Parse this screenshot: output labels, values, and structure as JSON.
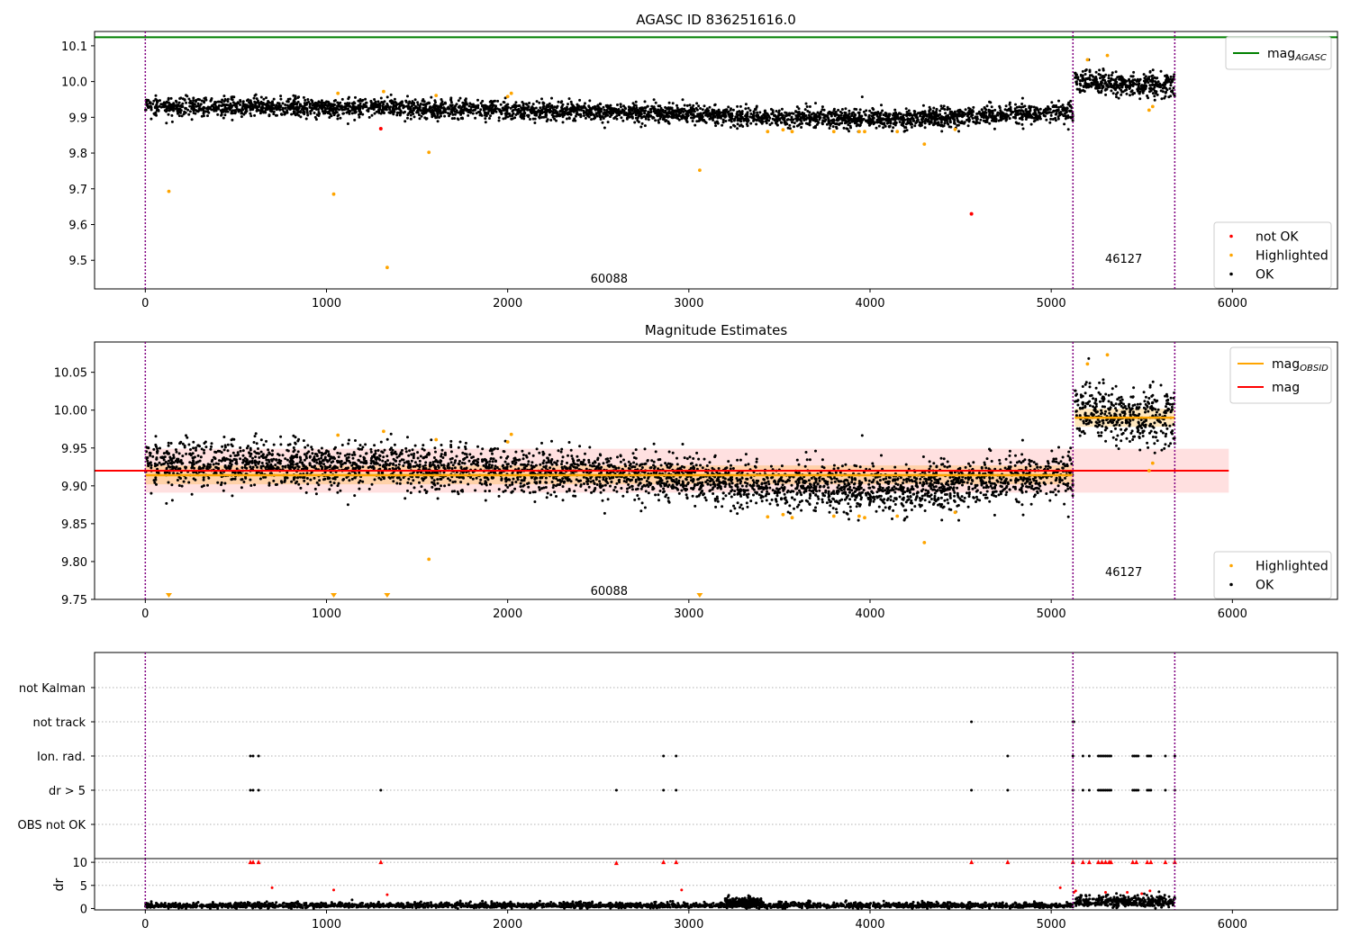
{
  "chart_data": [
    {
      "type": "scatter",
      "title": "AGASC ID 836251616.0",
      "xlim": [
        -280,
        6580
      ],
      "ylim": [
        9.42,
        10.14
      ],
      "xticks": [
        0,
        1000,
        2000,
        3000,
        4000,
        5000,
        6000
      ],
      "yticks": [
        9.5,
        9.6,
        9.7,
        9.8,
        9.9,
        10.0,
        10.1
      ],
      "ytick_labels": [
        "9.5",
        "9.6",
        "9.7",
        "9.8",
        "9.9",
        "10.0",
        "10.1"
      ],
      "obsid_boundaries": [
        0,
        5120,
        5682
      ],
      "obsid_labels": [
        {
          "text": "60088",
          "x": 2560,
          "y": 9.45
        },
        {
          "text": "46127",
          "x": 5400,
          "y": 9.505
        }
      ],
      "agasc_mag": 10.124,
      "ok_segments": [
        {
          "x0": 0,
          "x1": 5120,
          "level": [
            [
              0,
              9.93
            ],
            [
              1500,
              9.925
            ],
            [
              2300,
              9.918
            ],
            [
              3000,
              9.91
            ],
            [
              3500,
              9.9
            ],
            [
              4100,
              9.895
            ],
            [
              4600,
              9.905
            ],
            [
              5120,
              9.915
            ]
          ],
          "sigma": 0.013,
          "n": 3600
        },
        {
          "x0": 5130,
          "x1": 5682,
          "level": [
            [
              5130,
              10.005
            ],
            [
              5400,
              9.99
            ],
            [
              5682,
              9.99
            ]
          ],
          "sigma": 0.017,
          "n": 420
        }
      ],
      "highlighted": [
        [
          130,
          9.693
        ],
        [
          1040,
          9.685
        ],
        [
          1063,
          9.967
        ],
        [
          1315,
          9.972
        ],
        [
          1335,
          9.48
        ],
        [
          1565,
          9.802
        ],
        [
          1605,
          9.961
        ],
        [
          2020,
          9.967
        ],
        [
          2000,
          9.958
        ],
        [
          3060,
          9.752
        ],
        [
          3435,
          9.86
        ],
        [
          3520,
          9.865
        ],
        [
          3570,
          9.86
        ],
        [
          3800,
          9.86
        ],
        [
          3940,
          9.86
        ],
        [
          3970,
          9.86
        ],
        [
          4150,
          9.86
        ],
        [
          4300,
          9.825
        ],
        [
          4470,
          9.866
        ],
        [
          5200,
          10.061
        ],
        [
          5310,
          10.073
        ],
        [
          5540,
          9.92
        ],
        [
          5560,
          9.93
        ]
      ],
      "not_ok": [
        [
          1300,
          9.868
        ],
        [
          4560,
          9.63
        ]
      ],
      "legends": [
        {
          "position": "upper right",
          "entries": [
            {
              "label": "mag",
              "subscript": "AGASC",
              "color": "#008000",
              "kind": "line"
            }
          ]
        },
        {
          "position": "lower right",
          "entries": [
            {
              "label": "not OK",
              "color": "#ff0000",
              "kind": "dot"
            },
            {
              "label": "Highlighted",
              "color": "#ffa500",
              "kind": "dot"
            },
            {
              "label": "OK",
              "color": "#000000",
              "kind": "dot"
            }
          ]
        }
      ]
    },
    {
      "type": "scatter",
      "title": "Magnitude Estimates",
      "xlim": [
        -280,
        6580
      ],
      "ylim": [
        9.75,
        10.09
      ],
      "xticks": [
        0,
        1000,
        2000,
        3000,
        4000,
        5000,
        6000
      ],
      "yticks": [
        9.75,
        9.8,
        9.85,
        9.9,
        9.95,
        10.0,
        10.05
      ],
      "ytick_labels": [
        "9.75",
        "9.80",
        "9.85",
        "9.90",
        "9.95",
        "10.00",
        "10.05"
      ],
      "obsid_boundaries": [
        0,
        5120,
        5682
      ],
      "obsid_labels": [
        {
          "text": "60088",
          "x": 2560,
          "y": 9.762
        },
        {
          "text": "46127",
          "x": 5400,
          "y": 9.787
        }
      ],
      "mag": 9.92,
      "mag_band": [
        9.891,
        9.949
      ],
      "band_x": [
        0,
        5980
      ],
      "mag_obsid": [
        {
          "x0": 0,
          "x1": 5120,
          "mag": 9.914,
          "band": [
            9.902,
            9.927
          ]
        },
        {
          "x0": 5130,
          "x1": 5682,
          "mag": 9.99,
          "band": [
            9.978,
            10.002
          ]
        }
      ],
      "ok_segments": [
        {
          "x0": 0,
          "x1": 5120,
          "level": [
            [
              0,
              9.93
            ],
            [
              1500,
              9.925
            ],
            [
              2300,
              9.918
            ],
            [
              3000,
              9.91
            ],
            [
              3500,
              9.9
            ],
            [
              4100,
              9.895
            ],
            [
              4600,
              9.905
            ],
            [
              5120,
              9.915
            ]
          ],
          "sigma": 0.015,
          "n": 3600
        },
        {
          "x0": 5130,
          "x1": 5682,
          "level": [
            [
              5130,
              10.005
            ],
            [
              5400,
              9.99
            ],
            [
              5682,
              9.99
            ]
          ],
          "sigma": 0.019,
          "n": 420
        }
      ],
      "highlighted": [
        [
          1063,
          9.967
        ],
        [
          1315,
          9.972
        ],
        [
          1565,
          9.803
        ],
        [
          1605,
          9.961
        ],
        [
          2000,
          9.958
        ],
        [
          2020,
          9.968
        ],
        [
          3435,
          9.859
        ],
        [
          3520,
          9.862
        ],
        [
          3570,
          9.858
        ],
        [
          3800,
          9.86
        ],
        [
          3940,
          9.86
        ],
        [
          3970,
          9.858
        ],
        [
          4150,
          9.86
        ],
        [
          4300,
          9.825
        ],
        [
          4470,
          9.865
        ],
        [
          5200,
          10.061
        ],
        [
          5310,
          10.073
        ],
        [
          5540,
          9.92
        ],
        [
          5560,
          9.93
        ]
      ],
      "below_range": [
        130,
        1040,
        1335,
        3060
      ],
      "legends": [
        {
          "position": "upper right",
          "entries": [
            {
              "label": "mag",
              "subscript": "OBSID",
              "color": "#ffa500",
              "kind": "line"
            },
            {
              "label": "mag",
              "color": "#ff0000",
              "kind": "line"
            }
          ]
        },
        {
          "position": "lower right",
          "entries": [
            {
              "label": "Highlighted",
              "color": "#ffa500",
              "kind": "dot"
            },
            {
              "label": "OK",
              "color": "#000000",
              "kind": "dot"
            }
          ]
        }
      ]
    },
    {
      "type": "scatter",
      "xlim": [
        -280,
        6580
      ],
      "obsid_boundaries": [
        0,
        5120,
        5682
      ],
      "flag_rows": [
        "not Kalman",
        "not track",
        "Ion. rad.",
        "dr > 5",
        "OBS not OK"
      ],
      "flags": {
        "not track": [
          4560,
          5120,
          5125
        ],
        "Ion. rad.": [
          580,
          595,
          625,
          2860,
          2930,
          4760,
          5120,
          5175,
          5210,
          5260,
          5270,
          5280,
          5290,
          5300,
          5310,
          5320,
          5330,
          5450,
          5460,
          5470,
          5480,
          5530,
          5540,
          5550,
          5630,
          5682
        ],
        "dr > 5": [
          580,
          595,
          625,
          1300,
          2600,
          2860,
          2930,
          4560,
          4760,
          5120,
          5175,
          5210,
          5260,
          5270,
          5280,
          5290,
          5300,
          5310,
          5320,
          5330,
          5450,
          5460,
          5470,
          5480,
          5530,
          5540,
          5550,
          5630,
          5682
        ]
      }
    },
    {
      "type": "scatter",
      "xlim": [
        -280,
        6580
      ],
      "ylim": [
        -0.3,
        10.8
      ],
      "ylabel": "dr",
      "xticks": [
        0,
        1000,
        2000,
        3000,
        4000,
        5000,
        6000
      ],
      "yticks": [
        0,
        5,
        10
      ],
      "obsid_boundaries": [
        0,
        5120,
        5682
      ],
      "dr_segments": [
        {
          "x0": 0,
          "x1": 5120,
          "mean": 0.6,
          "sigma": 0.35,
          "n": 2600
        },
        {
          "x0": 3200,
          "x1": 3400,
          "mean": 1.4,
          "sigma": 0.6,
          "n": 160
        },
        {
          "x0": 5130,
          "x1": 5682,
          "mean": 1.3,
          "sigma": 0.8,
          "n": 360
        }
      ],
      "dr_outliers": [
        [
          580,
          10.0
        ],
        [
          595,
          10.0
        ],
        [
          625,
          10.0
        ],
        [
          700,
          4.5
        ],
        [
          1040,
          4.0
        ],
        [
          1300,
          10.0
        ],
        [
          1335,
          3.0
        ],
        [
          2600,
          9.8
        ],
        [
          2860,
          10.0
        ],
        [
          2930,
          10.0
        ],
        [
          2960,
          4.0
        ],
        [
          4560,
          10.0
        ],
        [
          4760,
          10.0
        ],
        [
          5050,
          4.5
        ],
        [
          5120,
          10.0
        ],
        [
          5125,
          3.5
        ],
        [
          5135,
          3.8
        ],
        [
          5175,
          10.0
        ],
        [
          5210,
          10.0
        ],
        [
          5260,
          10.0
        ],
        [
          5280,
          10.0
        ],
        [
          5300,
          10.0
        ],
        [
          5320,
          10.0
        ],
        [
          5300,
          3.5
        ],
        [
          5330,
          10.0
        ],
        [
          5420,
          3.5
        ],
        [
          5450,
          10.0
        ],
        [
          5470,
          10.0
        ],
        [
          5500,
          3.2
        ],
        [
          5530,
          10.0
        ],
        [
          5545,
          3.8
        ],
        [
          5550,
          10.0
        ],
        [
          5630,
          10.0
        ],
        [
          5682,
          10.0
        ]
      ]
    }
  ]
}
